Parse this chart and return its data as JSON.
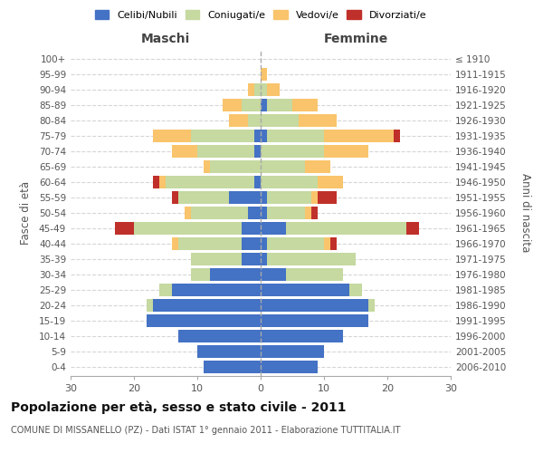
{
  "age_groups": [
    "100+",
    "95-99",
    "90-94",
    "85-89",
    "80-84",
    "75-79",
    "70-74",
    "65-69",
    "60-64",
    "55-59",
    "50-54",
    "45-49",
    "40-44",
    "35-39",
    "30-34",
    "25-29",
    "20-24",
    "15-19",
    "10-14",
    "5-9",
    "0-4"
  ],
  "birth_years": [
    "≤ 1910",
    "1911-1915",
    "1916-1920",
    "1921-1925",
    "1926-1930",
    "1931-1935",
    "1936-1940",
    "1941-1945",
    "1946-1950",
    "1951-1955",
    "1956-1960",
    "1961-1965",
    "1966-1970",
    "1971-1975",
    "1976-1980",
    "1981-1985",
    "1986-1990",
    "1991-1995",
    "1996-2000",
    "2001-2005",
    "2006-2010"
  ],
  "male": {
    "celibi": [
      0,
      0,
      0,
      0,
      0,
      1,
      1,
      0,
      1,
      5,
      2,
      3,
      3,
      3,
      8,
      14,
      17,
      18,
      13,
      10,
      9
    ],
    "coniugati": [
      0,
      0,
      1,
      3,
      2,
      10,
      9,
      8,
      14,
      8,
      9,
      17,
      10,
      8,
      3,
      2,
      1,
      0,
      0,
      0,
      0
    ],
    "vedovi": [
      0,
      0,
      1,
      3,
      3,
      6,
      4,
      1,
      1,
      0,
      1,
      0,
      1,
      0,
      0,
      0,
      0,
      0,
      0,
      0,
      0
    ],
    "divorziati": [
      0,
      0,
      0,
      0,
      0,
      0,
      0,
      0,
      1,
      1,
      0,
      3,
      0,
      0,
      0,
      0,
      0,
      0,
      0,
      0,
      0
    ]
  },
  "female": {
    "nubili": [
      0,
      0,
      0,
      1,
      0,
      1,
      0,
      0,
      0,
      1,
      1,
      4,
      1,
      1,
      4,
      14,
      17,
      17,
      13,
      10,
      9
    ],
    "coniugate": [
      0,
      0,
      1,
      4,
      6,
      9,
      10,
      7,
      9,
      7,
      6,
      19,
      9,
      14,
      9,
      2,
      1,
      0,
      0,
      0,
      0
    ],
    "vedove": [
      0,
      1,
      2,
      4,
      6,
      11,
      7,
      4,
      4,
      1,
      1,
      0,
      1,
      0,
      0,
      0,
      0,
      0,
      0,
      0,
      0
    ],
    "divorziate": [
      0,
      0,
      0,
      0,
      0,
      1,
      0,
      0,
      0,
      3,
      1,
      2,
      1,
      0,
      0,
      0,
      0,
      0,
      0,
      0,
      0
    ]
  },
  "colors": {
    "celibi": "#4472c4",
    "coniugati": "#c5d9a0",
    "vedovi": "#f9c46b",
    "divorziati": "#c0302a"
  },
  "xlim": 30,
  "title": "Popolazione per età, sesso e stato civile - 2011",
  "subtitle": "COMUNE DI MISSANELLO (PZ) - Dati ISTAT 1° gennaio 2011 - Elaborazione TUTTITALIA.IT",
  "ylabel_left": "Fasce di età",
  "ylabel_right": "Anni di nascita",
  "xlabel_left": "Maschi",
  "xlabel_right": "Femmine"
}
